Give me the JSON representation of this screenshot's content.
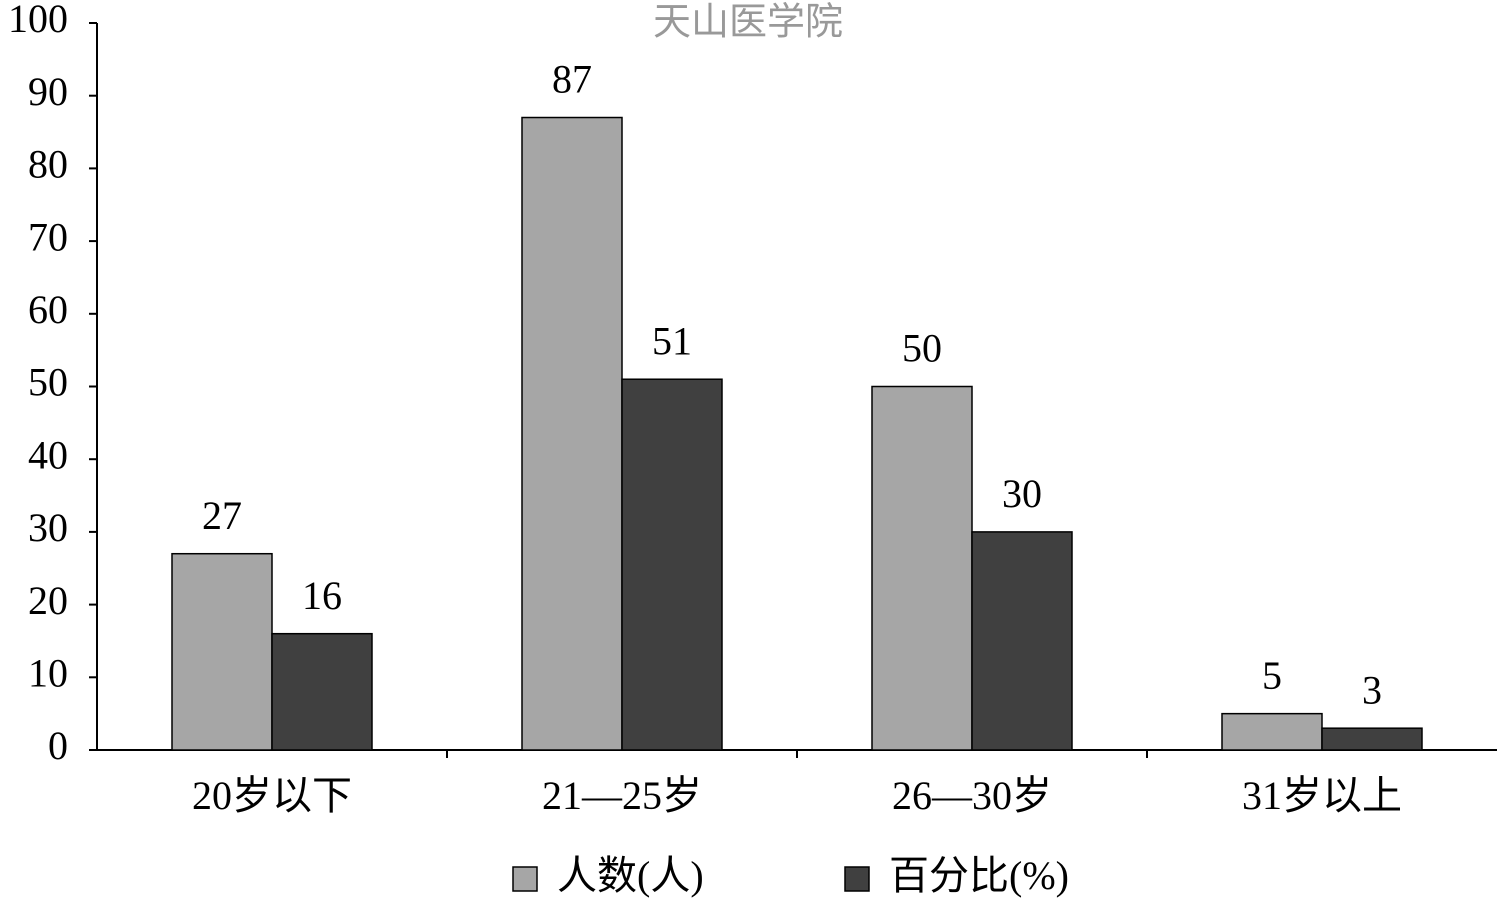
{
  "chart_data": {
    "type": "bar",
    "watermark": "天山医学院",
    "categories": [
      "20岁以下",
      "21—25岁",
      "26—30岁",
      "31岁以上"
    ],
    "series": [
      {
        "name": "人数(人)",
        "color": "#a6a6a6",
        "values": [
          27,
          87,
          50,
          5
        ]
      },
      {
        "name": "百分比(%)",
        "color": "#404040",
        "values": [
          16,
          51,
          30,
          3
        ]
      }
    ],
    "ylim": [
      0,
      100
    ],
    "yticks": [
      0,
      10,
      20,
      30,
      40,
      50,
      60,
      70,
      80,
      90,
      100
    ]
  }
}
